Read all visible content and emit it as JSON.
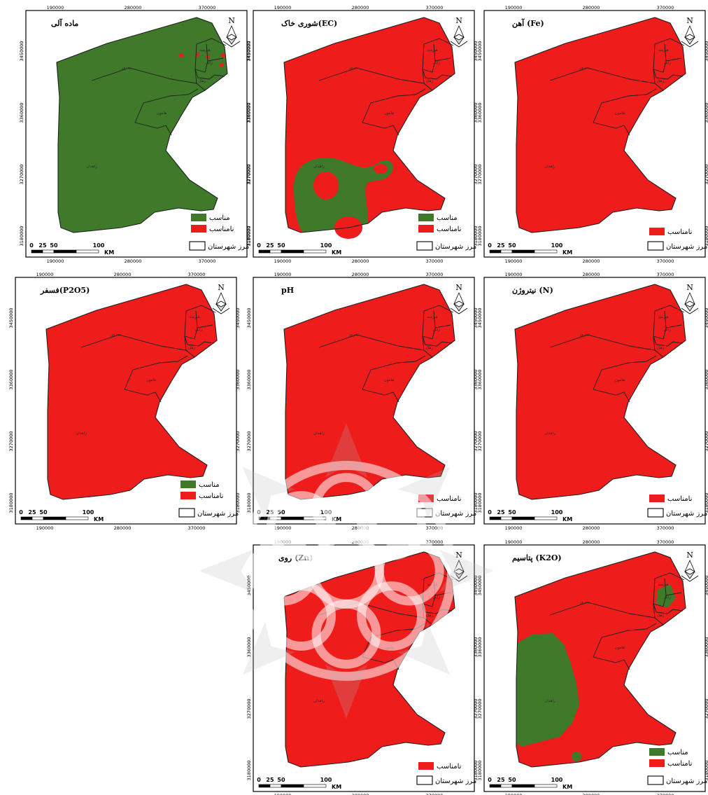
{
  "colors": {
    "suitable": "#3f7a2a",
    "unsuitable": "#ef1c1c",
    "boundary": "#1e1e1e"
  },
  "common": {
    "x_ticks": [
      "190000",
      "280000",
      "370000"
    ],
    "y_ticks": [
      "3450000",
      "3360000",
      "3270000",
      "3180000"
    ],
    "scale": {
      "labels": [
        "0",
        "25",
        "50",
        "100"
      ],
      "unit": "KM"
    },
    "north": "N",
    "legend_suitable": "مناسب",
    "legend_unsuitable": "نامناسب",
    "legend_boundary": "مرز شهرستان",
    "counties": {
      "zahedan": "زاهدان",
      "nimruz": "نیمروز",
      "hamoun": "هامون",
      "zahak": "زهک",
      "zabol": "زابل",
      "hirmand": "هیرمند"
    }
  },
  "maps": [
    {
      "id": "organic",
      "title": "ماده آلی",
      "legend": [
        "suitable",
        "unsuitable"
      ]
    },
    {
      "id": "ec",
      "title": "شوری خاک(EC)",
      "legend": [
        "suitable",
        "unsuitable"
      ]
    },
    {
      "id": "fe",
      "title": "آهن (Fe)",
      "legend": [
        "unsuitable"
      ]
    },
    {
      "id": "p2o5",
      "title": "فسفر(P2O5)",
      "legend": [
        "suitable",
        "unsuitable"
      ]
    },
    {
      "id": "ph",
      "title": "pH",
      "legend": [
        "unsuitable"
      ]
    },
    {
      "id": "n",
      "title": "نیتروژن (N)",
      "legend": [
        "unsuitable"
      ]
    },
    {
      "id": "zn",
      "title": "روی (Zn)",
      "legend": [
        "unsuitable"
      ]
    },
    {
      "id": "k2o",
      "title": "پتاسیم (K2O)",
      "legend": [
        "suitable",
        "unsuitable"
      ]
    }
  ]
}
